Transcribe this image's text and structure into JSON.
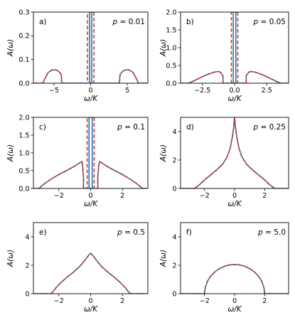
{
  "colors": {
    "exact": "#1f77b4",
    "approx": "#d62728"
  },
  "chart_data": [
    {
      "type": "line",
      "panel": "a)",
      "p_symbol": "p",
      "p_value": "= 0.01",
      "xlabel": "ω/K",
      "ylabel": "A(ω)",
      "xlim": [
        -7.8,
        7.8
      ],
      "ylim": [
        0,
        0.3
      ],
      "xticks": [
        {
          "v": -5,
          "l": "−5"
        },
        {
          "v": 0,
          "l": "0"
        },
        {
          "v": 5,
          "l": "5"
        }
      ],
      "yticks": [
        {
          "v": 0,
          "l": "0.0"
        },
        {
          "v": 0.1,
          "l": "0.1"
        },
        {
          "v": 0.2,
          "l": "0.2"
        },
        {
          "v": 0.3,
          "l": "0.3"
        }
      ],
      "series": [
        {
          "style": "exact",
          "x": [
            -0.15,
            -0.15,
            -0.15,
            0.15,
            0.15,
            0.15
          ],
          "y": [
            0,
            0.3,
            0.3,
            0.3,
            0.3,
            0
          ]
        },
        {
          "style": "exact",
          "x": [
            -7.8,
            -6.5,
            -6.3,
            -5.8,
            -5.2,
            -4.6,
            -4.2,
            -4.0,
            -3.95,
            -3.9,
            3.9,
            3.95,
            4.0,
            4.2,
            4.6,
            5.2,
            5.8,
            6.3,
            6.5,
            7.8
          ],
          "y": [
            0,
            0,
            0.015,
            0.045,
            0.057,
            0.055,
            0.045,
            0.035,
            0.01,
            0,
            0,
            0.01,
            0.035,
            0.045,
            0.055,
            0.057,
            0.045,
            0.015,
            0,
            0
          ]
        },
        {
          "style": "approx",
          "x": [
            -7.8,
            -6.5,
            -6.3,
            -5.8,
            -5.2,
            -4.6,
            -4.2,
            -4.0,
            -3.95,
            -3.9,
            -0.6,
            -0.45,
            -0.45
          ],
          "y": [
            0,
            0,
            0.015,
            0.045,
            0.057,
            0.055,
            0.045,
            0.035,
            0.01,
            0,
            0,
            0,
            0.3
          ]
        },
        {
          "style": "approx",
          "x": [
            0.45,
            0.45,
            0.6,
            3.9,
            3.95,
            4.0,
            4.2,
            4.6,
            5.2,
            5.8,
            6.3,
            6.5,
            7.8
          ],
          "y": [
            0.3,
            0,
            0,
            0,
            0.01,
            0.035,
            0.045,
            0.055,
            0.057,
            0.045,
            0.015,
            0,
            0
          ]
        }
      ]
    },
    {
      "type": "line",
      "panel": "b)",
      "p_symbol": "p",
      "p_value": "= 0.05",
      "xlabel": "ω/K",
      "ylabel": "A(ω)",
      "xlim": [
        -4.2,
        4.2
      ],
      "ylim": [
        0,
        2.0
      ],
      "xticks": [
        {
          "v": -2.5,
          "l": "−2.5"
        },
        {
          "v": 0,
          "l": "0.0"
        },
        {
          "v": 2.5,
          "l": "2.5"
        }
      ],
      "yticks": [
        {
          "v": 0,
          "l": "0.0"
        },
        {
          "v": 0.5,
          "l": "0.5"
        },
        {
          "v": 1.0,
          "l": "1.0"
        },
        {
          "v": 1.5,
          "l": "1.5"
        },
        {
          "v": 2.0,
          "l": "2.0"
        }
      ],
      "series": [
        {
          "style": "exact",
          "x": [
            -0.1,
            -0.1,
            0.1,
            0.1
          ],
          "y": [
            0,
            2.0,
            2.0,
            0
          ]
        },
        {
          "style": "exact",
          "x": [
            -4.2,
            -3.6,
            -3.5,
            -3.2,
            -2.8,
            -2.4,
            -2.0,
            -1.6,
            -1.3,
            -1.1,
            -1.0,
            -0.9,
            -0.9,
            0.9,
            0.9,
            1.0,
            1.1,
            1.3,
            1.6,
            2.0,
            2.4,
            2.8,
            3.2,
            3.5,
            3.6,
            4.2
          ],
          "y": [
            0,
            0,
            0.01,
            0.06,
            0.13,
            0.2,
            0.26,
            0.31,
            0.33,
            0.31,
            0.26,
            0.2,
            0,
            0,
            0.2,
            0.26,
            0.31,
            0.33,
            0.31,
            0.26,
            0.2,
            0.13,
            0.06,
            0.01,
            0,
            0
          ]
        },
        {
          "style": "approx",
          "x": [
            -4.2,
            -3.6,
            -3.5,
            -3.2,
            -2.8,
            -2.4,
            -2.0,
            -1.6,
            -1.3,
            -1.1,
            -1.0,
            -0.9,
            -0.9,
            -0.25,
            -0.25
          ],
          "y": [
            0,
            0,
            0.01,
            0.06,
            0.13,
            0.2,
            0.26,
            0.31,
            0.33,
            0.31,
            0.26,
            0.2,
            0,
            0,
            2.0
          ]
        },
        {
          "style": "approx",
          "x": [
            0.25,
            0.25,
            0.9,
            0.9,
            1.0,
            1.1,
            1.3,
            1.6,
            2.0,
            2.4,
            2.8,
            3.2,
            3.5,
            3.6,
            4.2
          ],
          "y": [
            2.0,
            0,
            0,
            0.2,
            0.26,
            0.31,
            0.33,
            0.31,
            0.26,
            0.2,
            0.13,
            0.06,
            0.01,
            0,
            0
          ]
        }
      ]
    },
    {
      "type": "line",
      "panel": "c)",
      "p_symbol": "p",
      "p_value": "= 0.1",
      "xlabel": "ω/K",
      "ylabel": "A(ω)",
      "xlim": [
        -3.6,
        3.6
      ],
      "ylim": [
        0,
        2.0
      ],
      "xticks": [
        {
          "v": -2,
          "l": "−2"
        },
        {
          "v": 0,
          "l": "0"
        },
        {
          "v": 2,
          "l": "2"
        }
      ],
      "yticks": [
        {
          "v": 0,
          "l": "0.0"
        },
        {
          "v": 0.5,
          "l": "0.5"
        },
        {
          "v": 1.0,
          "l": "1.0"
        },
        {
          "v": 1.5,
          "l": "1.5"
        },
        {
          "v": 2.0,
          "l": "2.0"
        }
      ],
      "series": [
        {
          "style": "exact",
          "x": [
            -0.1,
            -0.1,
            0.1,
            0.1
          ],
          "y": [
            0,
            2.0,
            2.0,
            0
          ]
        },
        {
          "style": "exact",
          "x": [
            -3.6,
            -3.3,
            -3.2,
            -3.0,
            -2.6,
            -2.2,
            -1.8,
            -1.4,
            -1.0,
            -0.7,
            -0.55,
            -0.5,
            -0.45,
            -0.45,
            0.45,
            0.45,
            0.5,
            0.55,
            0.7,
            1.0,
            1.4,
            1.8,
            2.2,
            2.6,
            3.0,
            3.2,
            3.3,
            3.6
          ],
          "y": [
            0,
            0,
            0.02,
            0.1,
            0.23,
            0.34,
            0.44,
            0.53,
            0.63,
            0.72,
            0.76,
            0.6,
            0.3,
            0,
            0,
            0.3,
            0.6,
            0.76,
            0.72,
            0.63,
            0.53,
            0.44,
            0.34,
            0.23,
            0.1,
            0.02,
            0,
            0
          ]
        },
        {
          "style": "approx",
          "x": [
            -3.6,
            -3.3,
            -3.2,
            -3.0,
            -2.6,
            -2.2,
            -1.8,
            -1.4,
            -1.0,
            -0.7,
            -0.55,
            -0.5,
            -0.45,
            -0.45,
            -0.22,
            -0.22
          ],
          "y": [
            0,
            0,
            0.02,
            0.1,
            0.23,
            0.34,
            0.44,
            0.53,
            0.63,
            0.72,
            0.76,
            0.6,
            0.3,
            0,
            0,
            2.0
          ]
        },
        {
          "style": "approx",
          "x": [
            0.22,
            0.22,
            0.45,
            0.45,
            0.5,
            0.55,
            0.7,
            1.0,
            1.4,
            1.8,
            2.2,
            2.6,
            3.0,
            3.2,
            3.3,
            3.6
          ],
          "y": [
            2.0,
            0,
            0,
            0.3,
            0.6,
            0.76,
            0.72,
            0.63,
            0.53,
            0.44,
            0.34,
            0.23,
            0.1,
            0.02,
            0,
            0
          ]
        }
      ]
    },
    {
      "type": "line",
      "panel": "d)",
      "p_symbol": "p",
      "p_value": "= 0.25",
      "xlabel": "ω/K",
      "ylabel": "A(ω)",
      "xlim": [
        -3.6,
        3.6
      ],
      "ylim": [
        0,
        5
      ],
      "xticks": [
        {
          "v": -2,
          "l": "−2"
        },
        {
          "v": 0,
          "l": "0"
        },
        {
          "v": 2,
          "l": "2"
        }
      ],
      "yticks": [
        {
          "v": 0,
          "l": "0"
        },
        {
          "v": 2,
          "l": "2"
        },
        {
          "v": 4,
          "l": "4"
        }
      ],
      "series": [
        {
          "style": "exact",
          "x": [
            -3.6,
            -2.7,
            -2.6,
            -2.3,
            -2.0,
            -1.6,
            -1.2,
            -0.8,
            -0.5,
            -0.3,
            -0.15,
            -0.07,
            0,
            0.07,
            0.15,
            0.3,
            0.5,
            0.8,
            1.2,
            1.6,
            2.0,
            2.3,
            2.6,
            2.7,
            3.6
          ],
          "y": [
            0,
            0,
            0.05,
            0.3,
            0.6,
            0.95,
            1.3,
            1.7,
            2.2,
            2.8,
            3.6,
            4.2,
            5.0,
            4.2,
            3.6,
            2.8,
            2.2,
            1.7,
            1.3,
            0.95,
            0.6,
            0.3,
            0.05,
            0,
            0
          ]
        },
        {
          "style": "approx",
          "x": [
            -3.6,
            -2.7,
            -2.6,
            -2.3,
            -2.0,
            -1.6,
            -1.2,
            -0.8,
            -0.5,
            -0.3,
            -0.15,
            -0.07,
            0,
            0.07,
            0.15,
            0.3,
            0.5,
            0.8,
            1.2,
            1.6,
            2.0,
            2.3,
            2.6,
            2.7,
            3.6
          ],
          "y": [
            0,
            0,
            0.05,
            0.3,
            0.6,
            0.95,
            1.3,
            1.7,
            2.2,
            2.8,
            3.6,
            4.2,
            5.0,
            4.2,
            3.6,
            2.8,
            2.2,
            1.7,
            1.3,
            0.95,
            0.6,
            0.3,
            0.05,
            0,
            0
          ]
        }
      ]
    },
    {
      "type": "line",
      "panel": "e)",
      "p_symbol": "p",
      "p_value": "= 0.5",
      "xlabel": "ω/K",
      "ylabel": "A(ω)",
      "xlim": [
        -3.6,
        3.6
      ],
      "ylim": [
        0,
        5
      ],
      "xticks": [
        {
          "v": -2,
          "l": "−2"
        },
        {
          "v": 0,
          "l": "0"
        },
        {
          "v": 2,
          "l": "2"
        }
      ],
      "yticks": [
        {
          "v": 0,
          "l": "0"
        },
        {
          "v": 2,
          "l": "2"
        },
        {
          "v": 4,
          "l": "4"
        }
      ],
      "series": [
        {
          "style": "exact",
          "x": [
            -3.6,
            -2.5,
            -2.4,
            -2.2,
            -1.9,
            -1.5,
            -1.1,
            -0.7,
            -0.4,
            -0.2,
            0,
            0.2,
            0.4,
            0.7,
            1.1,
            1.5,
            1.9,
            2.2,
            2.4,
            2.5,
            3.6
          ],
          "y": [
            0,
            0,
            0.1,
            0.4,
            0.75,
            1.15,
            1.5,
            1.9,
            2.3,
            2.6,
            2.85,
            2.6,
            2.3,
            1.9,
            1.5,
            1.15,
            0.75,
            0.4,
            0.1,
            0,
            0
          ]
        },
        {
          "style": "approx",
          "x": [
            -3.6,
            -2.5,
            -2.4,
            -2.2,
            -1.9,
            -1.5,
            -1.1,
            -0.7,
            -0.4,
            -0.2,
            0,
            0.2,
            0.4,
            0.7,
            1.1,
            1.5,
            1.9,
            2.2,
            2.4,
            2.5,
            3.6
          ],
          "y": [
            0,
            0,
            0.1,
            0.4,
            0.75,
            1.15,
            1.5,
            1.9,
            2.3,
            2.6,
            2.85,
            2.6,
            2.3,
            1.9,
            1.5,
            1.15,
            0.75,
            0.4,
            0.1,
            0,
            0
          ]
        }
      ]
    },
    {
      "type": "line",
      "panel": "f)",
      "p_symbol": "p",
      "p_value": "= 5.0",
      "xlabel": "ω/K",
      "ylabel": "A(ω)",
      "xlim": [
        -3.6,
        3.6
      ],
      "ylim": [
        0,
        5
      ],
      "xticks": [
        {
          "v": -2,
          "l": "−2"
        },
        {
          "v": 0,
          "l": "0"
        },
        {
          "v": 2,
          "l": "2"
        }
      ],
      "yticks": [
        {
          "v": 0,
          "l": "0"
        },
        {
          "v": 2,
          "l": "2"
        },
        {
          "v": 4,
          "l": "4"
        }
      ],
      "series": [
        {
          "style": "exact",
          "x": [
            -3.6,
            -2.05,
            -2.0,
            -1.95,
            -1.8,
            -1.6,
            -1.3,
            -1.0,
            -0.6,
            -0.3,
            0,
            0.3,
            0.6,
            1.0,
            1.3,
            1.6,
            1.8,
            1.95,
            2.0,
            2.05,
            3.6
          ],
          "y": [
            0,
            0,
            0.05,
            0.45,
            0.89,
            1.23,
            1.55,
            1.77,
            1.96,
            2.03,
            2.05,
            2.03,
            1.96,
            1.77,
            1.55,
            1.23,
            0.89,
            0.45,
            0.05,
            0,
            0
          ]
        },
        {
          "style": "approx",
          "x": [
            -3.6,
            -2.05,
            -2.0,
            -1.95,
            -1.8,
            -1.6,
            -1.3,
            -1.0,
            -0.6,
            -0.3,
            0,
            0.3,
            0.6,
            1.0,
            1.3,
            1.6,
            1.8,
            1.95,
            2.0,
            2.05,
            3.6
          ],
          "y": [
            0,
            0,
            0.05,
            0.45,
            0.89,
            1.23,
            1.55,
            1.77,
            1.96,
            2.03,
            2.05,
            2.03,
            1.96,
            1.77,
            1.55,
            1.23,
            0.89,
            0.45,
            0.05,
            0,
            0
          ]
        }
      ]
    }
  ]
}
